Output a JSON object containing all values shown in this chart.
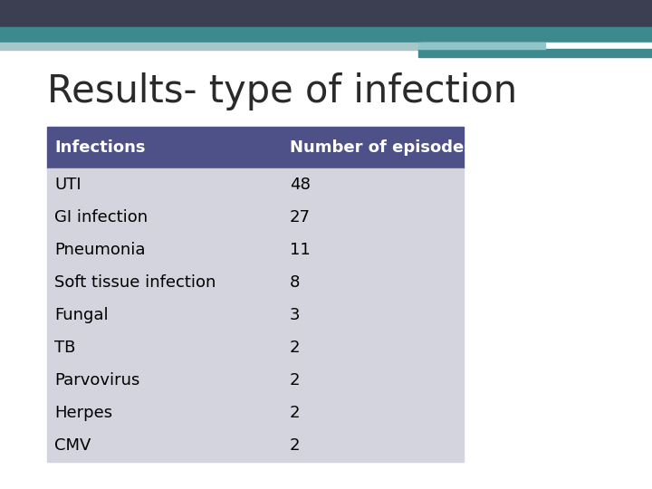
{
  "title": "Results- type of infection",
  "header": [
    "Infections",
    "Number of episodes"
  ],
  "rows": [
    [
      "UTI",
      "48"
    ],
    [
      "GI infection",
      "27"
    ],
    [
      "Pneumonia",
      "11"
    ],
    [
      "Soft tissue infection",
      "8"
    ],
    [
      "Fungal",
      "3"
    ],
    [
      "TB",
      "2"
    ],
    [
      "Parvovirus",
      "2"
    ],
    [
      "Herpes",
      "2"
    ],
    [
      "CMV",
      "2"
    ]
  ],
  "header_bg_color": "#4e5088",
  "header_text_color": "#ffffff",
  "row_bg_color": "#d4d4de",
  "row_text_color": "#000000",
  "title_color": "#2a2a2a",
  "background_color": "#ffffff",
  "top_bar1_color": "#3a4a5c",
  "top_bar2_color": "#5a9aa0",
  "top_bar3_color": "#8fc0c4",
  "title_fontsize": 30,
  "table_fontsize": 13
}
